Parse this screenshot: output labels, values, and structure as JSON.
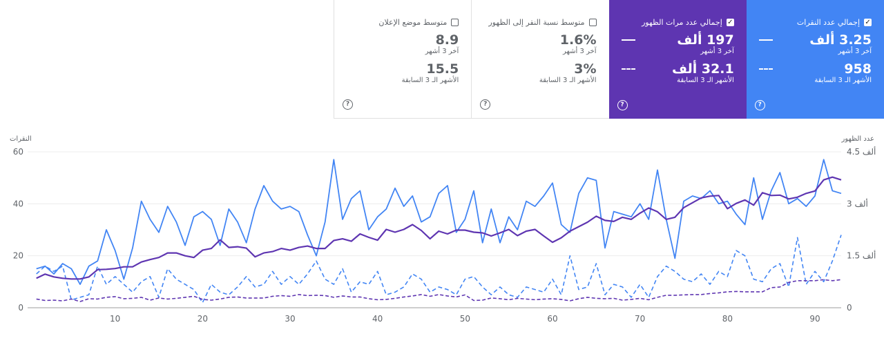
{
  "cards": [
    {
      "id": "clicks",
      "title": "إجمالي عدد النقرات",
      "checked": true,
      "value": "3.25 ألف",
      "value_label": "آخر 3 أشهر",
      "prev_value": "958",
      "prev_label": "الأشهر الـ 3 السابقة",
      "color": "#4285f4"
    },
    {
      "id": "impressions",
      "title": "إجمالي عدد مرات الظهور",
      "checked": true,
      "value": "197 ألف",
      "value_label": "آخر 3 أشهر",
      "prev_value": "32.1 ألف",
      "prev_label": "الأشهر الـ 3 السابقة",
      "color": "#5e35b1"
    },
    {
      "id": "ctr",
      "title": "متوسط نسبة النقر إلى الظهور",
      "checked": false,
      "value": "1.6%",
      "value_label": "آخر 3 أشهر",
      "prev_value": "3%",
      "prev_label": "الأشهر الـ 3 السابقة"
    },
    {
      "id": "position",
      "title": "متوسط موضع الإعلان",
      "checked": false,
      "value": "8.9",
      "value_label": "آخر 3 أشهر",
      "prev_value": "15.5",
      "prev_label": "الأشهر الـ 3 السابقة"
    }
  ],
  "help_glyph": "?",
  "check_glyph": "✓",
  "chart_data": {
    "type": "line",
    "left_axis": {
      "title": "النقرات",
      "ticks": [
        "0",
        "20",
        "40",
        "60"
      ],
      "range": [
        0,
        60
      ]
    },
    "right_axis": {
      "title": "عدد الظهور",
      "ticks": [
        "0",
        "1.5 ألف",
        "3 ألف",
        "4.5 ألف"
      ],
      "range": [
        0,
        4500
      ]
    },
    "x_ticks": [
      "10",
      "20",
      "30",
      "40",
      "50",
      "60",
      "70",
      "80",
      "90"
    ],
    "x_range": [
      0,
      93
    ],
    "grid": true,
    "series": [
      {
        "axis": "left",
        "dashed": false,
        "color": "#4285f4",
        "values": [
          15,
          16,
          13,
          17,
          15,
          9,
          16,
          18,
          30,
          22,
          11,
          23,
          41,
          34,
          29,
          39,
          33,
          24,
          35,
          37,
          34,
          24,
          38,
          33,
          25,
          38,
          47,
          41,
          38,
          39,
          37,
          28,
          20,
          33,
          57,
          34,
          42,
          45,
          30,
          35,
          38,
          46,
          39,
          43,
          33,
          35,
          44,
          47,
          29,
          34,
          45,
          25,
          38,
          25,
          35,
          30,
          41,
          39,
          43,
          48,
          32,
          29,
          44,
          50,
          49,
          23,
          37,
          36,
          35,
          40,
          34,
          53,
          34,
          19,
          41,
          43,
          42,
          45,
          40,
          41,
          36,
          32,
          50,
          34,
          45,
          52,
          40,
          42,
          39,
          43,
          57,
          45,
          44
        ]
      },
      {
        "axis": "left",
        "dashed": true,
        "color": "#4285f4",
        "values": [
          13,
          16,
          14,
          16,
          3,
          4,
          5,
          16,
          9,
          12,
          9,
          6,
          10,
          12,
          4,
          15,
          11,
          9,
          7,
          2,
          9,
          6,
          5,
          8,
          12,
          8,
          9,
          14,
          9,
          12,
          9,
          13,
          18,
          11,
          9,
          15,
          6,
          10,
          9,
          14,
          5,
          6,
          8,
          13,
          11,
          6,
          8,
          7,
          5,
          11,
          12,
          8,
          5,
          8,
          5,
          4,
          8,
          7,
          6,
          11,
          5,
          20,
          7,
          8,
          17,
          5,
          9,
          8,
          4,
          9,
          4,
          12,
          16,
          14,
          11,
          10,
          13,
          9,
          14,
          12,
          22,
          20,
          11,
          10,
          15,
          17,
          8,
          27,
          9,
          14,
          10,
          18,
          28
        ]
      },
      {
        "axis": "right",
        "dashed": false,
        "color": "#5e35b1",
        "values": [
          0.85,
          0.97,
          0.89,
          0.85,
          0.83,
          0.83,
          0.89,
          1.1,
          1.11,
          1.13,
          1.18,
          1.18,
          1.32,
          1.39,
          1.45,
          1.58,
          1.58,
          1.5,
          1.45,
          1.66,
          1.71,
          1.96,
          1.74,
          1.76,
          1.72,
          1.47,
          1.58,
          1.62,
          1.71,
          1.66,
          1.74,
          1.78,
          1.71,
          1.71,
          1.94,
          1.99,
          1.92,
          2.13,
          2.03,
          1.95,
          2.26,
          2.18,
          2.26,
          2.4,
          2.23,
          1.99,
          2.21,
          2.13,
          2.24,
          2.24,
          2.18,
          2.16,
          2.07,
          2.16,
          2.26,
          2.08,
          2.21,
          2.26,
          2.07,
          1.89,
          2.02,
          2.21,
          2.34,
          2.47,
          2.64,
          2.52,
          2.49,
          2.61,
          2.55,
          2.73,
          2.88,
          2.77,
          2.55,
          2.61,
          2.89,
          3.03,
          3.17,
          3.22,
          3.24,
          2.86,
          3.01,
          3.11,
          2.96,
          3.32,
          3.24,
          3.25,
          3.14,
          3.19,
          3.3,
          3.37,
          3.69,
          3.77,
          3.69
        ]
      },
      {
        "axis": "right",
        "dashed": true,
        "color": "#5e35b1",
        "values": [
          0.25,
          0.21,
          0.22,
          0.2,
          0.25,
          0.18,
          0.26,
          0.25,
          0.3,
          0.32,
          0.26,
          0.27,
          0.3,
          0.22,
          0.28,
          0.25,
          0.27,
          0.3,
          0.33,
          0.24,
          0.22,
          0.25,
          0.3,
          0.31,
          0.28,
          0.28,
          0.28,
          0.33,
          0.35,
          0.33,
          0.38,
          0.35,
          0.36,
          0.35,
          0.3,
          0.34,
          0.31,
          0.31,
          0.26,
          0.23,
          0.24,
          0.27,
          0.31,
          0.34,
          0.38,
          0.33,
          0.38,
          0.34,
          0.31,
          0.37,
          0.21,
          0.22,
          0.28,
          0.26,
          0.23,
          0.27,
          0.25,
          0.23,
          0.25,
          0.26,
          0.24,
          0.2,
          0.26,
          0.3,
          0.27,
          0.26,
          0.27,
          0.22,
          0.24,
          0.27,
          0.23,
          0.3,
          0.36,
          0.36,
          0.37,
          0.38,
          0.38,
          0.41,
          0.43,
          0.46,
          0.47,
          0.46,
          0.46,
          0.46,
          0.58,
          0.6,
          0.73,
          0.78,
          0.78,
          0.78,
          0.81,
          0.78,
          0.81
        ]
      }
    ]
  }
}
